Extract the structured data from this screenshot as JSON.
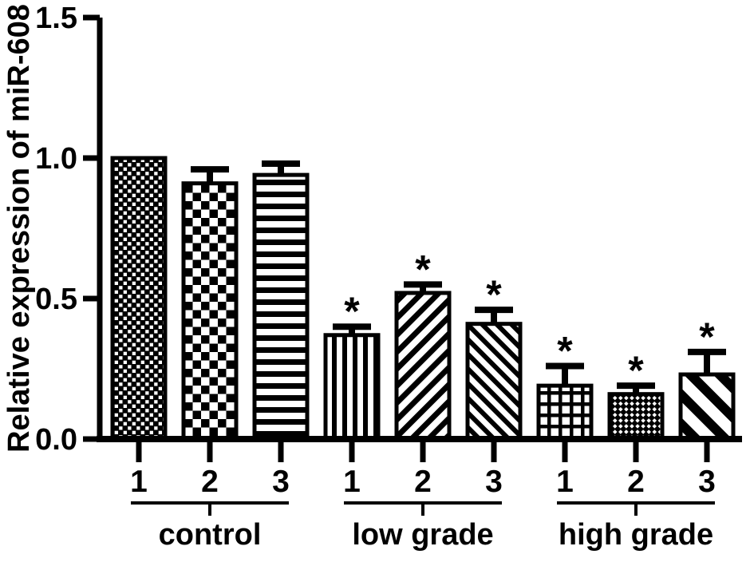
{
  "figure": {
    "background_color": "#ffffff",
    "ink_color": "#000000",
    "caption": ""
  },
  "chart_data": {
    "type": "bar",
    "title": "",
    "xlabel": "",
    "ylabel": "Relative expression of miR-608",
    "ylim": [
      0,
      1.5
    ],
    "yticks": [
      0.0,
      0.5,
      1.0,
      1.5
    ],
    "ytick_labels": [
      "0.0",
      "0.5",
      "1.0",
      "1.5"
    ],
    "grid": false,
    "legend_position": "none",
    "error_bars": "upper only, capped",
    "significance_marker": "*",
    "bar_style": "white bars with black hatch patterns, thick black outlines",
    "groups": [
      {
        "label": "control",
        "bars": [
          {
            "sample": "1",
            "value": 1.0,
            "error": 0.0,
            "pattern": "checker-small",
            "significant": false
          },
          {
            "sample": "2",
            "value": 0.91,
            "error": 0.05,
            "pattern": "checker-large",
            "significant": false
          },
          {
            "sample": "3",
            "value": 0.94,
            "error": 0.04,
            "pattern": "stripes-horizontal",
            "significant": false
          }
        ]
      },
      {
        "label": "low grade",
        "bars": [
          {
            "sample": "1",
            "value": 0.37,
            "error": 0.03,
            "pattern": "stripes-vertical",
            "significant": true
          },
          {
            "sample": "2",
            "value": 0.52,
            "error": 0.03,
            "pattern": "stripes-diagonal-up",
            "significant": true
          },
          {
            "sample": "3",
            "value": 0.41,
            "error": 0.05,
            "pattern": "stripes-diagonal-down",
            "significant": true
          }
        ]
      },
      {
        "label": "high grade",
        "bars": [
          {
            "sample": "1",
            "value": 0.19,
            "error": 0.07,
            "pattern": "grid",
            "significant": true
          },
          {
            "sample": "2",
            "value": 0.16,
            "error": 0.03,
            "pattern": "checker-diagonal",
            "significant": true
          },
          {
            "sample": "3",
            "value": 0.23,
            "error": 0.08,
            "pattern": "stripes-diagonal-wide",
            "significant": true
          }
        ]
      }
    ]
  }
}
